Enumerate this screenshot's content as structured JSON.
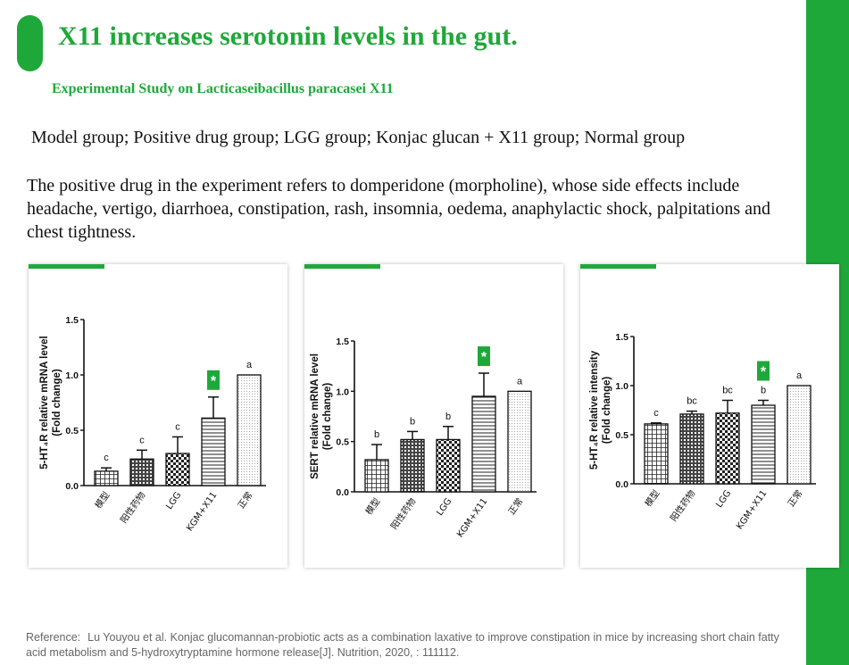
{
  "slide": {
    "title": "X11 increases serotonin levels in the gut.",
    "subtitle": "Experimental Study on Lacticaseibacillus  paracasei X11",
    "groups_line": "Model group; Positive drug group; LGG group; Konjac glucan + X11 group; Normal group",
    "drug_note": "The positive drug in the experiment refers to domperidone (morpholine), whose side effects include headache, vertigo, diarrhoea, constipation, rash, insomnia, oedema, anaphylactic shock, palpitations and chest tightness.",
    "reference_label": "Reference:",
    "reference_text": "Lu Youyou et al. Konjac glucomannan-probiotic acts as a combination laxative to improve constipation in mice by increasing short chain fatty acid metabolism and 5-hydroxytryptamine hormone release[J]. Nutrition, 2020, : 111112."
  },
  "colors": {
    "brand_green": "#1fa83a",
    "reference_gray": "#666666"
  },
  "chart_data": [
    {
      "type": "bar",
      "ylabel_line1": "5-HT₄R relative mRNA level",
      "ylabel_line2": "(Fold change)",
      "categories": [
        "模型",
        "阳性药物",
        "LGG",
        "KGM+X11",
        "正常"
      ],
      "values": [
        0.13,
        0.24,
        0.29,
        0.61,
        1.0
      ],
      "errors": [
        0.03,
        0.08,
        0.15,
        0.19,
        0.0
      ],
      "sig_letters": [
        "c",
        "c",
        "c",
        "",
        "a"
      ],
      "star_index": 3,
      "star_text": "*",
      "ylim": [
        0,
        1.5
      ],
      "yticks": [
        "0.0",
        "0.5",
        "1.0",
        "1.5"
      ],
      "ytick_values": [
        0,
        0.5,
        1.0,
        1.5
      ]
    },
    {
      "type": "bar",
      "ylabel_line1": "SERT relative mRNA level",
      "ylabel_line2": "(Fold change)",
      "categories": [
        "模型",
        "阳性药物",
        "LGG",
        "KGM+X11",
        "正常"
      ],
      "values": [
        0.32,
        0.52,
        0.52,
        0.95,
        1.0
      ],
      "errors": [
        0.15,
        0.08,
        0.13,
        0.23,
        0.0
      ],
      "sig_letters": [
        "b",
        "b",
        "b",
        "",
        "a"
      ],
      "star_index": 3,
      "star_text": "*",
      "ylim": [
        0,
        1.5
      ],
      "yticks": [
        "0.0",
        "0.5",
        "1.0",
        "1.5"
      ],
      "ytick_values": [
        0,
        0.5,
        1.0,
        1.5
      ]
    },
    {
      "type": "bar",
      "ylabel_line1": "5-HT₄R relative intensity",
      "ylabel_line2": "(Fold change)",
      "categories": [
        "模型",
        "阳性药物",
        "LGG",
        "KGM+X11",
        "正常"
      ],
      "values": [
        0.61,
        0.71,
        0.72,
        0.8,
        1.0
      ],
      "errors": [
        0.01,
        0.03,
        0.13,
        0.05,
        0.0
      ],
      "sig_letters": [
        "c",
        "bc",
        "bc",
        "b",
        "a"
      ],
      "star_index": 3,
      "star_text": "*",
      "ylim": [
        0,
        1.5
      ],
      "yticks": [
        "0.0",
        "0.5",
        "1.0",
        "1.5"
      ],
      "ytick_values": [
        0,
        0.5,
        1.0,
        1.5
      ]
    }
  ]
}
